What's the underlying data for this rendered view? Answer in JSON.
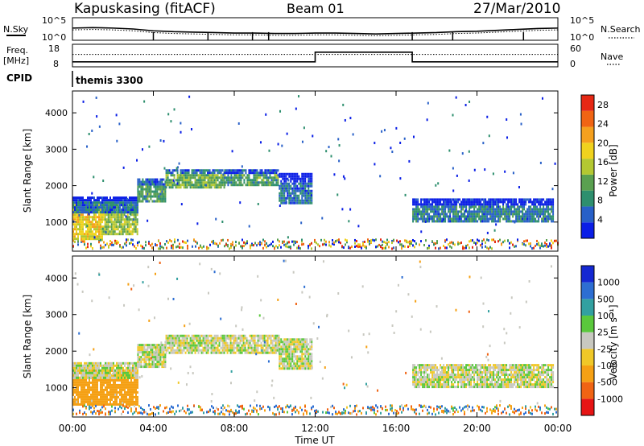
{
  "header": {
    "station": "Kapuskasing (fitACF)",
    "beam": "Beam 01",
    "date": "27/Mar/2010"
  },
  "panel_labels": {
    "nsky": "N.Sky",
    "nsearch": "N.Search",
    "freq_line1": "Freq.",
    "freq_line2": "[MHz]",
    "nave": "Nave",
    "cpid": "CPID",
    "program": "themis 3300"
  },
  "colors": {
    "power_scale": [
      "#0a1ee6",
      "#2860c8",
      "#2e8f6e",
      "#5aa050",
      "#b4c832",
      "#f0d21e",
      "#f5a01e",
      "#f06414",
      "#e62814"
    ],
    "velocity_scale": [
      "#1428d2",
      "#2d6ed2",
      "#32a0a0",
      "#5ac83c",
      "#c8c8c0",
      "#f0c828",
      "#f5a014",
      "#f06414",
      "#e61414"
    ]
  },
  "chart_data": [
    {
      "type": "line",
      "title": "",
      "left_label": "N.Sky",
      "right_label": "N.Search",
      "left_ticks": [
        "10^5",
        "10^0"
      ],
      "right_ticks": [
        "10^5",
        "10^0"
      ],
      "xlim": [
        "00:00",
        "24:00"
      ],
      "series": [
        {
          "name": "N.Sky",
          "x": [
            0,
            1,
            2,
            3,
            4,
            5,
            6,
            7,
            8,
            9,
            10,
            11,
            12,
            13,
            14,
            15,
            16,
            17,
            18,
            19,
            20,
            21,
            22,
            23,
            24
          ],
          "y": [
            2.7,
            2.8,
            2.7,
            2.5,
            2.1,
            1.9,
            1.8,
            1.7,
            1.6,
            1.6,
            1.5,
            1.5,
            1.6,
            1.6,
            1.5,
            1.4,
            1.5,
            1.6,
            1.7,
            1.9,
            2.0,
            2.2,
            2.4,
            2.6,
            2.7
          ]
        },
        {
          "name": "N.Search",
          "x": [
            0,
            1,
            2,
            3,
            4,
            5,
            6,
            7,
            8,
            9,
            10,
            11,
            12,
            13,
            14,
            15,
            16,
            17,
            18,
            19,
            20,
            21,
            22,
            23,
            24
          ],
          "y": [
            2.3,
            2.4,
            2.3,
            2.1,
            1.7,
            1.5,
            1.4,
            1.3,
            1.2,
            1.2,
            1.1,
            1.1,
            1.2,
            1.2,
            1.1,
            1.0,
            1.1,
            1.2,
            1.3,
            1.5,
            1.6,
            1.8,
            2.0,
            2.2,
            2.3
          ]
        }
      ],
      "dips_hours": [
        4.0,
        6.7,
        8.9,
        9.7,
        16.8,
        18.8,
        22.3
      ]
    },
    {
      "type": "line",
      "title": "",
      "left_label": "Freq. [MHz]",
      "right_label": "Nave",
      "left_ticks": [
        "18",
        "8"
      ],
      "right_ticks": [
        "60",
        "0"
      ],
      "series": [
        {
          "name": "Freq.",
          "x": [
            0,
            12,
            12,
            16.8,
            16.8,
            24
          ],
          "y": [
            10.2,
            10.2,
            14.5,
            14.5,
            10.2,
            10.2
          ]
        },
        {
          "name": "Nave",
          "x": [
            0,
            24
          ],
          "y": [
            33,
            33
          ]
        }
      ]
    },
    {
      "type": "heatmap",
      "title": "",
      "ylabel": "Slant Range [km]",
      "yticks": [
        1000,
        2000,
        3000,
        4000
      ],
      "ylim": [
        200,
        4600
      ],
      "colorbar_label": "Power [dB]",
      "colorbar_ticks": [
        4,
        8,
        12,
        16,
        20,
        24,
        28
      ],
      "colorbar_range": [
        0,
        30
      ],
      "regions": [
        {
          "x0": 0.0,
          "x1": 1.5,
          "r0": 550,
          "r1": 1500,
          "level": 18
        },
        {
          "x0": 1.5,
          "x1": 3.2,
          "r0": 650,
          "r1": 1500,
          "level": 14
        },
        {
          "x0": 0.0,
          "x1": 3.2,
          "r0": 1300,
          "r1": 1700,
          "level": 6
        },
        {
          "x0": 3.2,
          "x1": 4.6,
          "r0": 1600,
          "r1": 2200,
          "level": 10
        },
        {
          "x0": 4.6,
          "x1": 7.5,
          "r0": 1950,
          "r1": 2450,
          "level": 12
        },
        {
          "x0": 7.5,
          "x1": 10.2,
          "r0": 2050,
          "r1": 2450,
          "level": 10
        },
        {
          "x0": 10.2,
          "x1": 11.8,
          "r0": 1550,
          "r1": 2350,
          "level": 6
        },
        {
          "x0": 16.8,
          "x1": 23.8,
          "r0": 1050,
          "r1": 1650,
          "level": 7
        }
      ]
    },
    {
      "type": "heatmap",
      "title": "",
      "ylabel": "Slant Range [km]",
      "xlabel": "Time UT",
      "yticks": [
        1000,
        2000,
        3000,
        4000
      ],
      "xticks": [
        "00:00",
        "04:00",
        "08:00",
        "12:00",
        "16:00",
        "20:00",
        "00:00"
      ],
      "ylim": [
        200,
        4600
      ],
      "colorbar_label": "Velocity [m s⁻¹]",
      "colorbar_ticks": [
        1000,
        500,
        100,
        25,
        -25,
        -100,
        -500,
        -1000
      ],
      "regions": [
        {
          "x0": 0.0,
          "x1": 3.2,
          "r0": 550,
          "r1": 1500,
          "level": -300
        },
        {
          "x0": 0.0,
          "x1": 3.2,
          "r0": 1300,
          "r1": 1700,
          "level": 0
        },
        {
          "x0": 3.2,
          "x1": 4.6,
          "r0": 1600,
          "r1": 2200,
          "level": 0
        },
        {
          "x0": 4.6,
          "x1": 10.2,
          "r0": 1950,
          "r1": 2450,
          "level": 0
        },
        {
          "x0": 10.2,
          "x1": 11.8,
          "r0": 1550,
          "r1": 2350,
          "level": 0
        },
        {
          "x0": 16.8,
          "x1": 23.8,
          "r0": 1050,
          "r1": 1650,
          "level": 0
        }
      ]
    }
  ]
}
